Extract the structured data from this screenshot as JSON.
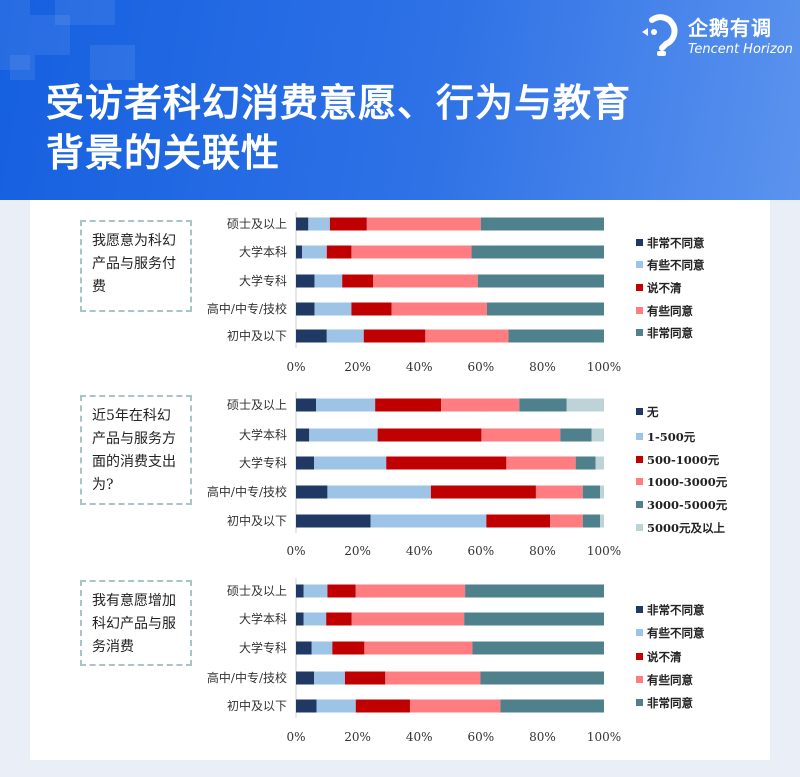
{
  "header": {
    "title_line1": "受访者科幻消费意愿、行为与教育",
    "title_line2": "背景的关联性",
    "logo_cn": "企鹅有调",
    "logo_en": "Tencent Horizon"
  },
  "colors": {
    "navy": "#1f3864",
    "light_blue": "#9dc3e6",
    "red": "#c00000",
    "pink": "#ff7c80",
    "teal": "#4f818c",
    "pale": "#bdd3d8"
  },
  "chart_data": [
    {
      "type": "bar",
      "orientation": "horizontal",
      "stacked": "percent",
      "question": "我愿意为科幻产品与服务付费",
      "categories": [
        "硕士及以上",
        "大学本科",
        "大学专科",
        "高中/中专/技校",
        "初中及以下"
      ],
      "xticks": [
        "0%",
        "20%",
        "40%",
        "60%",
        "80%",
        "100%"
      ],
      "xlim": [
        0,
        100
      ],
      "legend": "right",
      "series": [
        {
          "name": "非常不同意",
          "color": "#1f3864",
          "values": [
            4,
            2,
            6,
            6,
            10
          ]
        },
        {
          "name": "有些不同意",
          "color": "#9dc3e6",
          "values": [
            7,
            8,
            9,
            12,
            12
          ]
        },
        {
          "name": "说不清",
          "color": "#c00000",
          "values": [
            12,
            8,
            10,
            13,
            20
          ]
        },
        {
          "name": "有些同意",
          "color": "#ff7c80",
          "values": [
            37,
            39,
            34,
            31,
            27
          ]
        },
        {
          "name": "非常同意",
          "color": "#4f818c",
          "values": [
            40,
            43,
            41,
            38,
            31
          ]
        }
      ]
    },
    {
      "type": "bar",
      "orientation": "horizontal",
      "stacked": "percent",
      "question": "近5年在科幻产品与服务方面的消费支出为?",
      "categories": [
        "硕士及以上",
        "大学本科",
        "大学专科",
        "高中/中专/技校",
        "初中及以下"
      ],
      "xticks": [
        "0%",
        "20%",
        "40%",
        "60%",
        "80%",
        "100%"
      ],
      "xlim": [
        0,
        100
      ],
      "legend": "right",
      "series": [
        {
          "name": "无",
          "color": "#1f3864",
          "values": [
            6.5,
            4.3,
            5.9,
            10.2,
            24.2
          ]
        },
        {
          "name": "1-500元",
          "color": "#9dc3e6",
          "values": [
            19.2,
            22.2,
            23.4,
            33.6,
            37.6
          ]
        },
        {
          "name": "500-1000元",
          "color": "#c00000",
          "values": [
            21.4,
            33.7,
            39.0,
            34.1,
            20.7
          ]
        },
        {
          "name": "1000-3000元",
          "color": "#ff7c80",
          "values": [
            25.4,
            25.6,
            22.5,
            15.2,
            10.6
          ]
        },
        {
          "name": "3000-5000元",
          "color": "#4f818c",
          "values": [
            15.4,
            10.2,
            6.5,
            5.6,
            5.6
          ]
        },
        {
          "name": "5000元及以上",
          "color": "#bdd3d8",
          "values": [
            12.1,
            4.0,
            2.7,
            1.3,
            1.3
          ]
        }
      ]
    },
    {
      "type": "bar",
      "orientation": "horizontal",
      "stacked": "percent",
      "question": "我有意愿增加科幻产品与服务消费",
      "categories": [
        "硕士及以上",
        "大学本科",
        "大学专科",
        "高中/中专/技校",
        "初中及以下"
      ],
      "xticks": [
        "0%",
        "20%",
        "40%",
        "60%",
        "80%",
        "100%"
      ],
      "xlim": [
        0,
        100
      ],
      "legend": "right",
      "series": [
        {
          "name": "非常不同意",
          "color": "#1f3864",
          "values": [
            2.5,
            2.5,
            5.1,
            5.9,
            6.7
          ]
        },
        {
          "name": "有些不同意",
          "color": "#9dc3e6",
          "values": [
            7.7,
            7.3,
            6.7,
            10.0,
            12.7
          ]
        },
        {
          "name": "说不清",
          "color": "#c00000",
          "values": [
            9.2,
            8.3,
            10.4,
            13.1,
            17.6
          ]
        },
        {
          "name": "有些同意",
          "color": "#ff7c80",
          "values": [
            35.5,
            36.5,
            35.1,
            30.9,
            29.4
          ]
        },
        {
          "name": "非常同意",
          "color": "#4f818c",
          "values": [
            45.1,
            45.4,
            42.7,
            40.1,
            33.6
          ]
        }
      ]
    }
  ]
}
